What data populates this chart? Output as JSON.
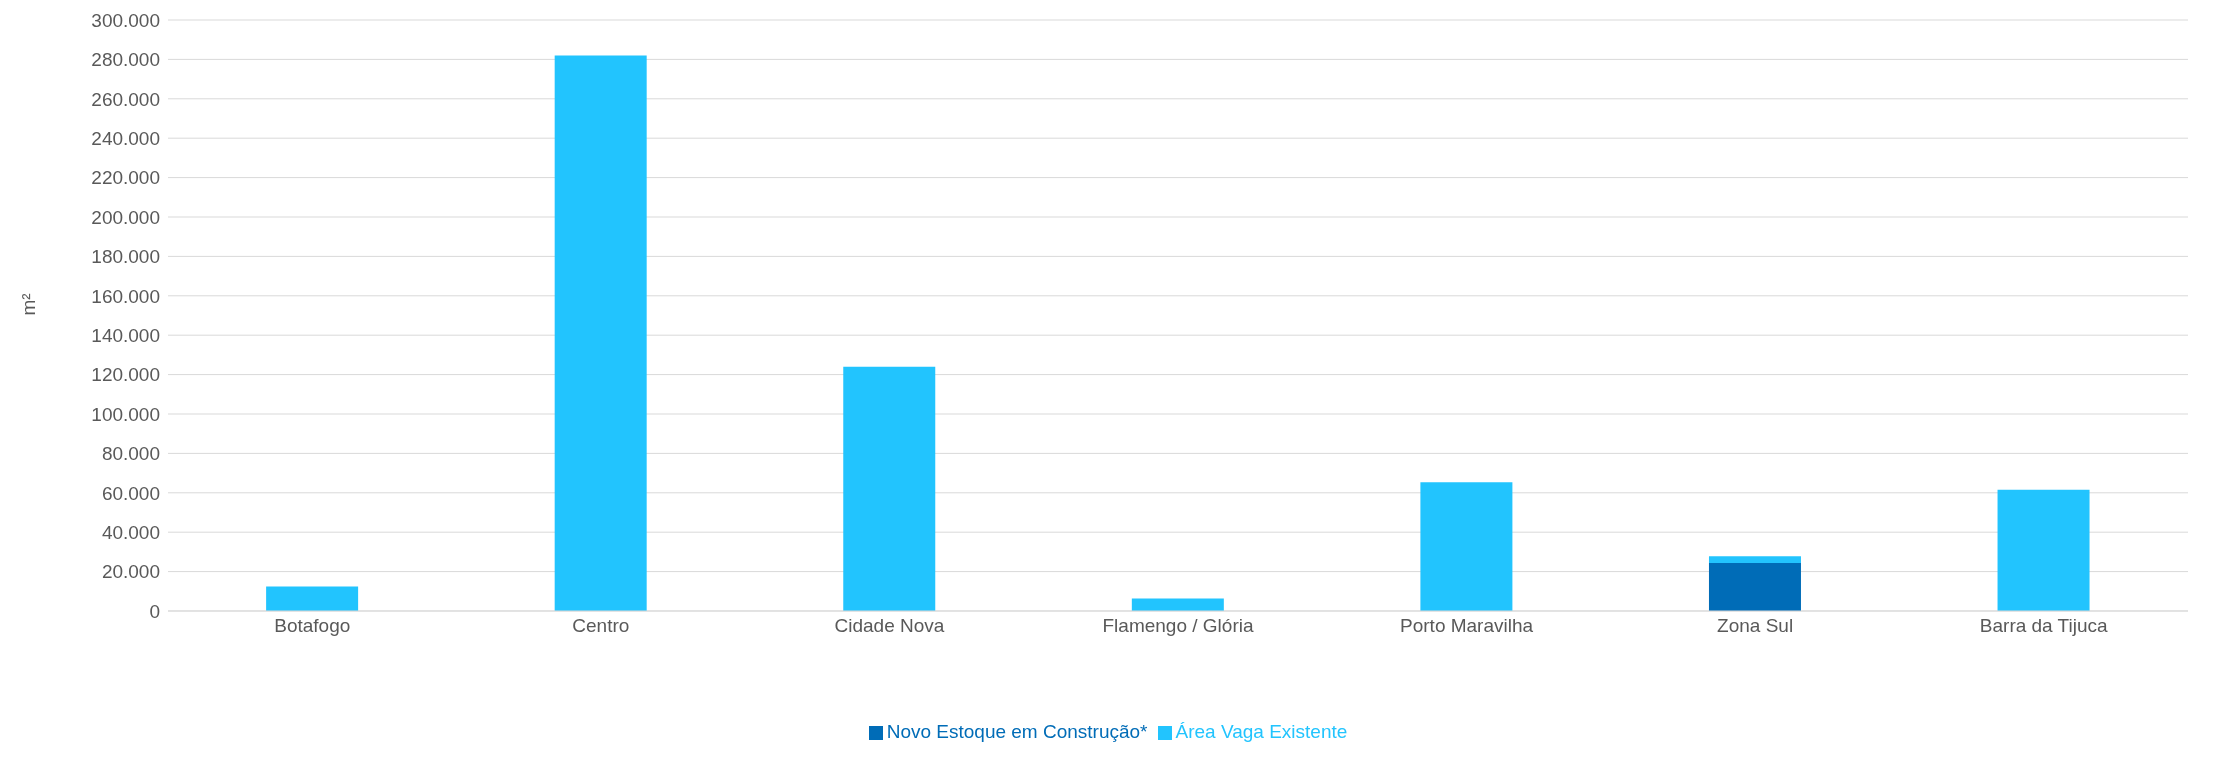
{
  "chart_data": {
    "type": "bar",
    "stacked": true,
    "ylabel": "m²",
    "categories": [
      "Botafogo",
      "Centro",
      "Cidade Nova",
      "Flamengo / Glória",
      "Porto Maravilha",
      "Zona Sul",
      "Barra da Tijuca"
    ],
    "series": [
      {
        "name": "Novo Estoque em Construção*",
        "color": "#006cb7",
        "values": [
          null,
          null,
          null,
          null,
          null,
          24400,
          null
        ]
      },
      {
        "name": "Área Vaga Existente",
        "color": "#22c4fe",
        "values": [
          12500,
          282000,
          124000,
          6300,
          65400,
          3400,
          61500
        ]
      }
    ],
    "ylim": [
      0,
      300000
    ],
    "yticks": [
      {
        "value": 0,
        "label": "0"
      },
      {
        "value": 20000,
        "label": "20.000"
      },
      {
        "value": 40000,
        "label": "40.000"
      },
      {
        "value": 60000,
        "label": "60.000"
      },
      {
        "value": 80000,
        "label": "80.000"
      },
      {
        "value": 100000,
        "label": "100.000"
      },
      {
        "value": 120000,
        "label": "120.000"
      },
      {
        "value": 140000,
        "label": "140.000"
      },
      {
        "value": 160000,
        "label": "160.000"
      },
      {
        "value": 180000,
        "label": "180.000"
      },
      {
        "value": 200000,
        "label": "200.000"
      },
      {
        "value": 220000,
        "label": "220.000"
      },
      {
        "value": 240000,
        "label": "240.000"
      },
      {
        "value": 260000,
        "label": "260.000"
      },
      {
        "value": 280000,
        "label": "280.000"
      },
      {
        "value": 300000,
        "label": "300.000"
      }
    ],
    "grid": "y",
    "legend": "bottom"
  }
}
